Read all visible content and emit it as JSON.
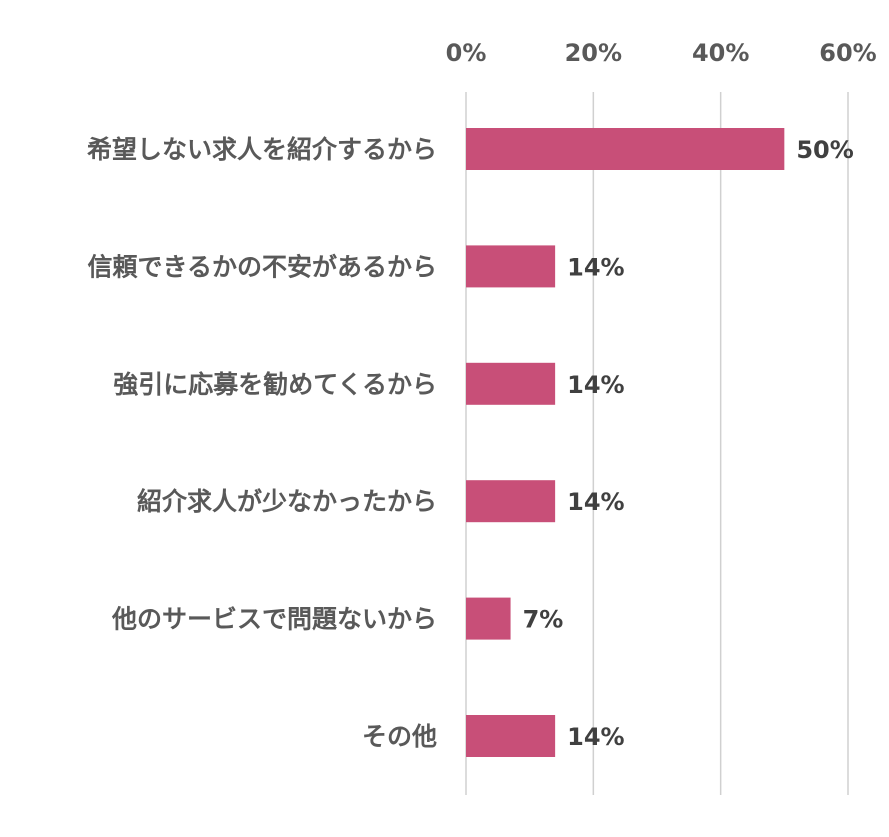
{
  "chart_data": {
    "type": "bar",
    "orientation": "horizontal",
    "categories": [
      "希望しない求人を紹介するから",
      "信頼できるかの不安があるから",
      "強引に応募を勧めてくるから",
      "紹介求人が少なかったから",
      "他のサービスで問題ないから",
      "その他"
    ],
    "values": [
      50,
      14,
      14,
      14,
      7,
      14
    ],
    "data_labels": [
      "50%",
      "14%",
      "14%",
      "14%",
      "7%",
      "14%"
    ],
    "xlim": [
      0,
      60
    ],
    "x_ticks": [
      0,
      20,
      40,
      60
    ],
    "x_tick_labels": [
      "0%",
      "20%",
      "40%",
      "60%"
    ],
    "x_axis_position": "top",
    "grid": true,
    "legend": "none",
    "title": "",
    "xlabel": "",
    "ylabel": "",
    "colors": {
      "bar": "#C84F78",
      "grid": "#D0D0D0",
      "label_text": "#595959",
      "value_text": "#404040"
    }
  }
}
